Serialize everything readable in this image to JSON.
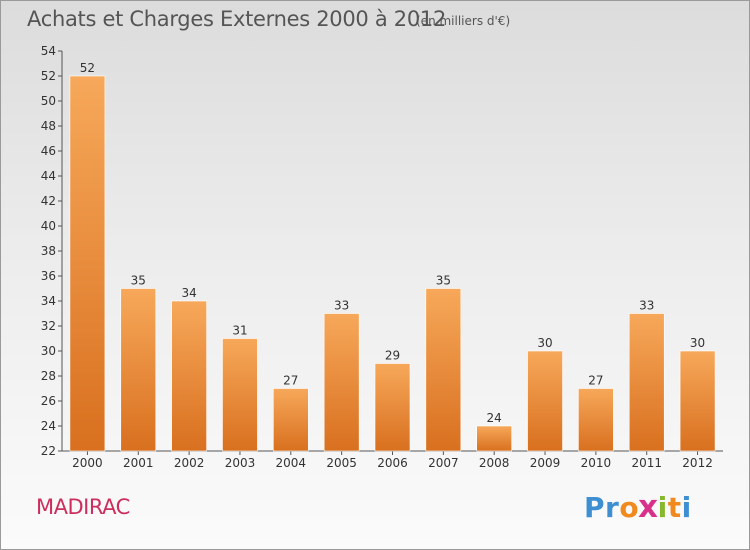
{
  "chart_data": {
    "type": "bar",
    "title": "Achats et Charges Externes 2000 à 2012",
    "subtitle": "(en milliers d'€)",
    "categories": [
      "2000",
      "2001",
      "2002",
      "2003",
      "2004",
      "2005",
      "2006",
      "2007",
      "2008",
      "2009",
      "2010",
      "2011",
      "2012"
    ],
    "values": [
      52,
      35,
      34,
      31,
      27,
      33,
      29,
      35,
      24,
      30,
      27,
      33,
      30
    ],
    "ylim": [
      22,
      54
    ],
    "yticks": [
      22,
      24,
      26,
      28,
      30,
      32,
      34,
      36,
      38,
      40,
      42,
      44,
      46,
      48,
      50,
      52,
      54
    ],
    "grid": false,
    "bar_color_top": "#f7a85a",
    "bar_color_bottom": "#d8701f"
  },
  "place_name": "MADIRAC",
  "logo": {
    "letters": [
      "P",
      "r",
      "o",
      "x",
      "i",
      "t",
      "i"
    ],
    "colors": [
      "#3d8fd1",
      "#3d8fd1",
      "#f08a1e",
      "#d9318a",
      "#86b82e",
      "#f08a1e",
      "#3d8fd1"
    ]
  }
}
